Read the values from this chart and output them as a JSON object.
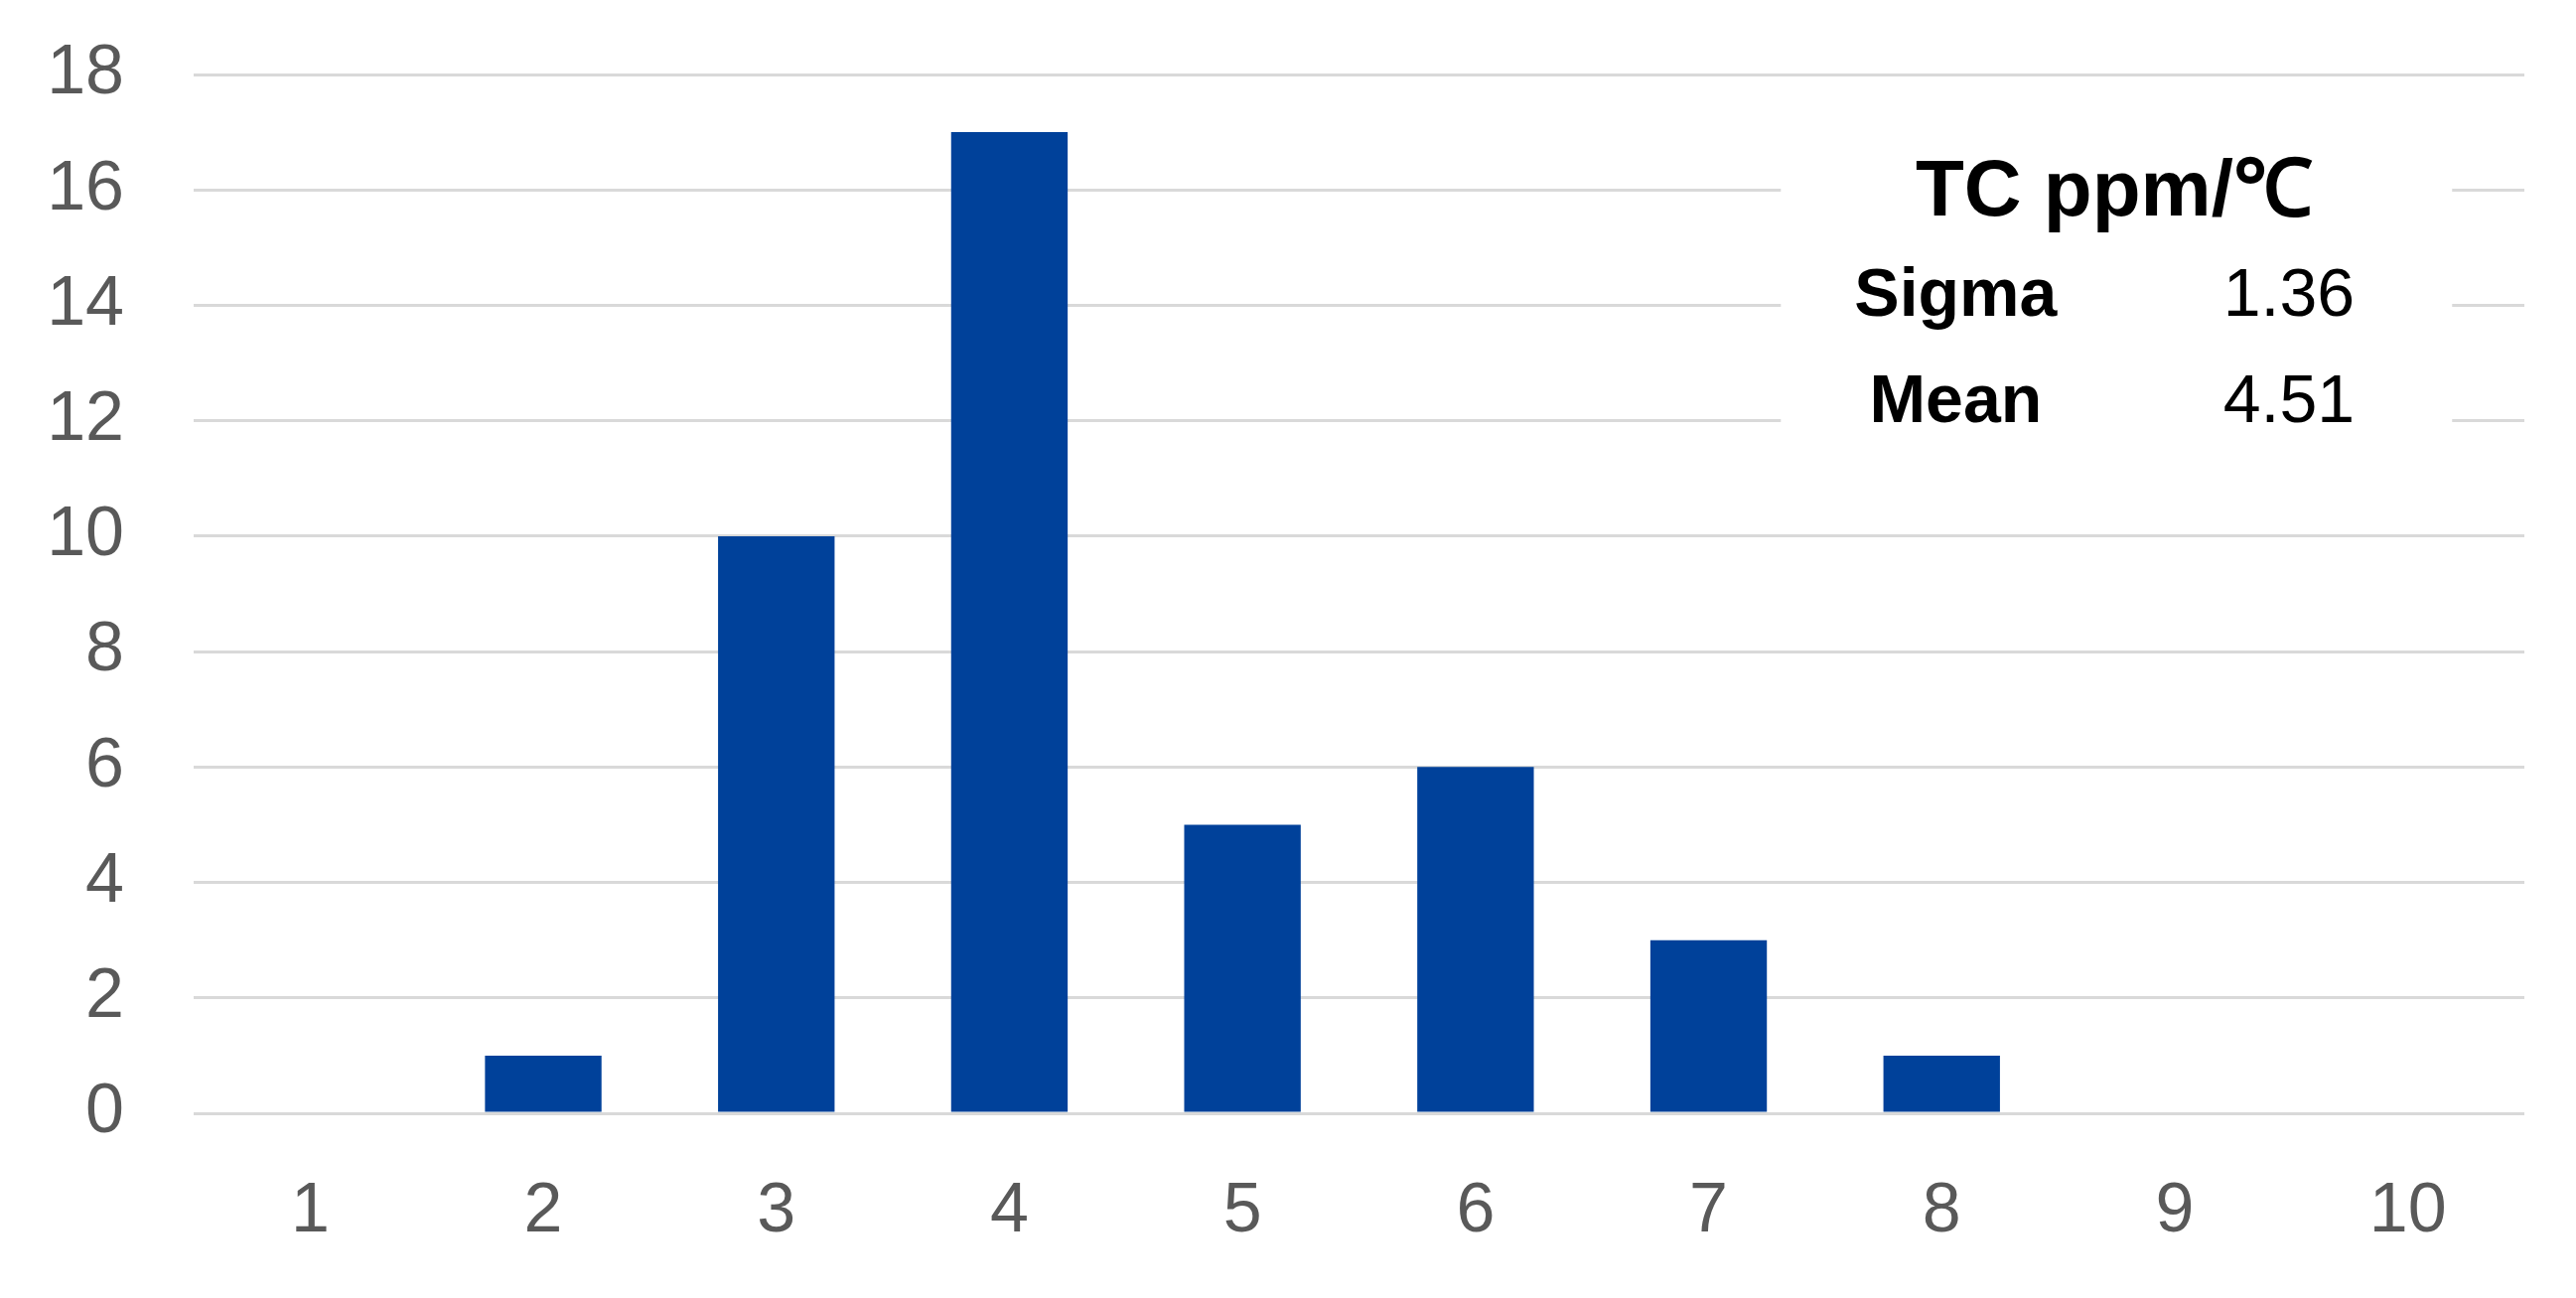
{
  "chart_data": {
    "type": "bar",
    "categories": [
      "1",
      "2",
      "3",
      "4",
      "5",
      "6",
      "7",
      "8",
      "9",
      "10"
    ],
    "values": [
      0,
      1,
      10,
      17,
      5,
      6,
      3,
      1,
      0,
      0
    ],
    "color": "#00419a",
    "ylim": [
      0,
      18
    ],
    "yticks": [
      0,
      2,
      4,
      6,
      8,
      10,
      12,
      14,
      16,
      18
    ],
    "grid": "y",
    "annotations": [
      "TC ppm/℃",
      "Sigma",
      "1.36",
      "Mean",
      "4.51"
    ]
  }
}
